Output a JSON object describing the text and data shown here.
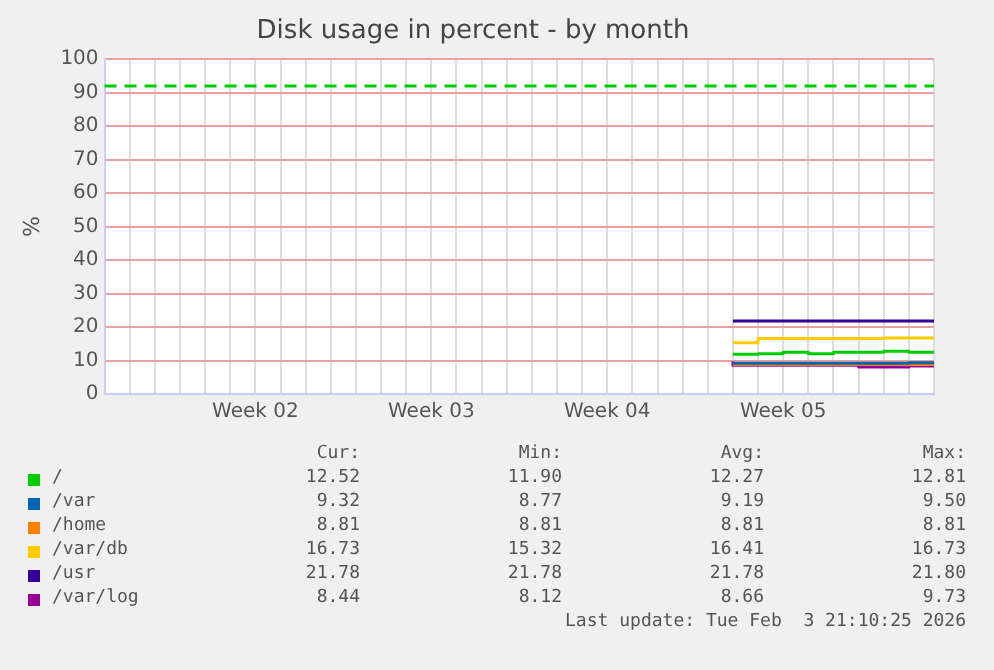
{
  "chart_data": {
    "type": "step",
    "title": "Disk usage in percent - by month",
    "ylabel": "%",
    "categories": [
      null,
      null,
      null,
      null,
      null,
      null,
      "Week 02",
      null,
      null,
      null,
      null,
      null,
      null,
      "Week 03",
      null,
      null,
      null,
      null,
      null,
      null,
      "Week 04",
      null,
      null,
      null,
      null,
      null,
      null,
      "Week 05",
      null,
      null,
      null,
      null,
      null,
      null
    ],
    "ylim": [
      0,
      100
    ],
    "yticks": [
      0,
      10,
      20,
      30,
      40,
      50,
      60,
      70,
      80,
      90,
      100
    ],
    "grid": true,
    "legend": "bottom",
    "ref_lines": [
      {
        "axis": "y",
        "value": 92,
        "color": "#00cc00",
        "line_style": "dashed"
      }
    ],
    "series": [
      {
        "name": "/",
        "color": "#00cc00",
        "values": [
          null,
          null,
          null,
          null,
          null,
          null,
          null,
          null,
          null,
          null,
          null,
          null,
          null,
          null,
          null,
          null,
          null,
          null,
          null,
          null,
          null,
          null,
          null,
          null,
          null,
          11.9,
          11.9,
          12.0,
          12.5,
          12.0,
          12.5,
          12.5,
          12.8,
          12.5
        ]
      },
      {
        "name": "/var",
        "color": "#0066b3",
        "values": [
          null,
          null,
          null,
          null,
          null,
          null,
          null,
          null,
          null,
          null,
          null,
          null,
          null,
          null,
          null,
          null,
          null,
          null,
          null,
          null,
          null,
          null,
          null,
          null,
          null,
          9.2,
          9.2,
          9.2,
          9.2,
          9.2,
          9.2,
          9.2,
          9.2,
          9.3
        ]
      },
      {
        "name": "/home",
        "color": "#ff8000",
        "values": [
          null,
          null,
          null,
          null,
          null,
          null,
          null,
          null,
          null,
          null,
          null,
          null,
          null,
          null,
          null,
          null,
          null,
          null,
          null,
          null,
          null,
          null,
          null,
          null,
          null,
          8.8,
          8.8,
          8.8,
          8.8,
          8.8,
          8.8,
          8.8,
          8.8,
          8.8
        ]
      },
      {
        "name": "/var/db",
        "color": "#ffcc00",
        "values": [
          null,
          null,
          null,
          null,
          null,
          null,
          null,
          null,
          null,
          null,
          null,
          null,
          null,
          null,
          null,
          null,
          null,
          null,
          null,
          null,
          null,
          null,
          null,
          null,
          null,
          15.3,
          15.3,
          16.6,
          16.6,
          16.6,
          16.6,
          16.6,
          16.7,
          16.7
        ]
      },
      {
        "name": "/usr",
        "color": "#330099",
        "values": [
          null,
          null,
          null,
          null,
          null,
          null,
          null,
          null,
          null,
          null,
          null,
          null,
          null,
          null,
          null,
          null,
          null,
          null,
          null,
          null,
          null,
          null,
          null,
          null,
          null,
          21.8,
          21.8,
          21.8,
          21.8,
          21.8,
          21.8,
          21.8,
          21.8,
          21.8
        ]
      },
      {
        "name": "/var/log",
        "color": "#990099",
        "values": [
          null,
          null,
          null,
          null,
          null,
          null,
          null,
          null,
          null,
          null,
          null,
          null,
          null,
          null,
          null,
          null,
          null,
          null,
          null,
          null,
          null,
          null,
          null,
          null,
          null,
          9.7,
          8.6,
          8.6,
          8.6,
          8.6,
          8.6,
          8.1,
          8.1,
          8.4
        ]
      }
    ],
    "annotations": [
      "Cur:",
      "Min:",
      "Avg:",
      "Max:",
      "12.52",
      "11.90",
      "12.27",
      "12.81",
      "9.32",
      "8.77",
      "9.19",
      "9.50",
      "8.81",
      "8.81",
      "8.81",
      "8.81",
      "16.73",
      "15.32",
      "16.41",
      "16.73",
      "21.78",
      "21.78",
      "21.78",
      "21.80",
      "8.44",
      "8.12",
      "8.66",
      "9.73",
      "Last update: Tue Feb  3 21:10:25 2026"
    ]
  }
}
